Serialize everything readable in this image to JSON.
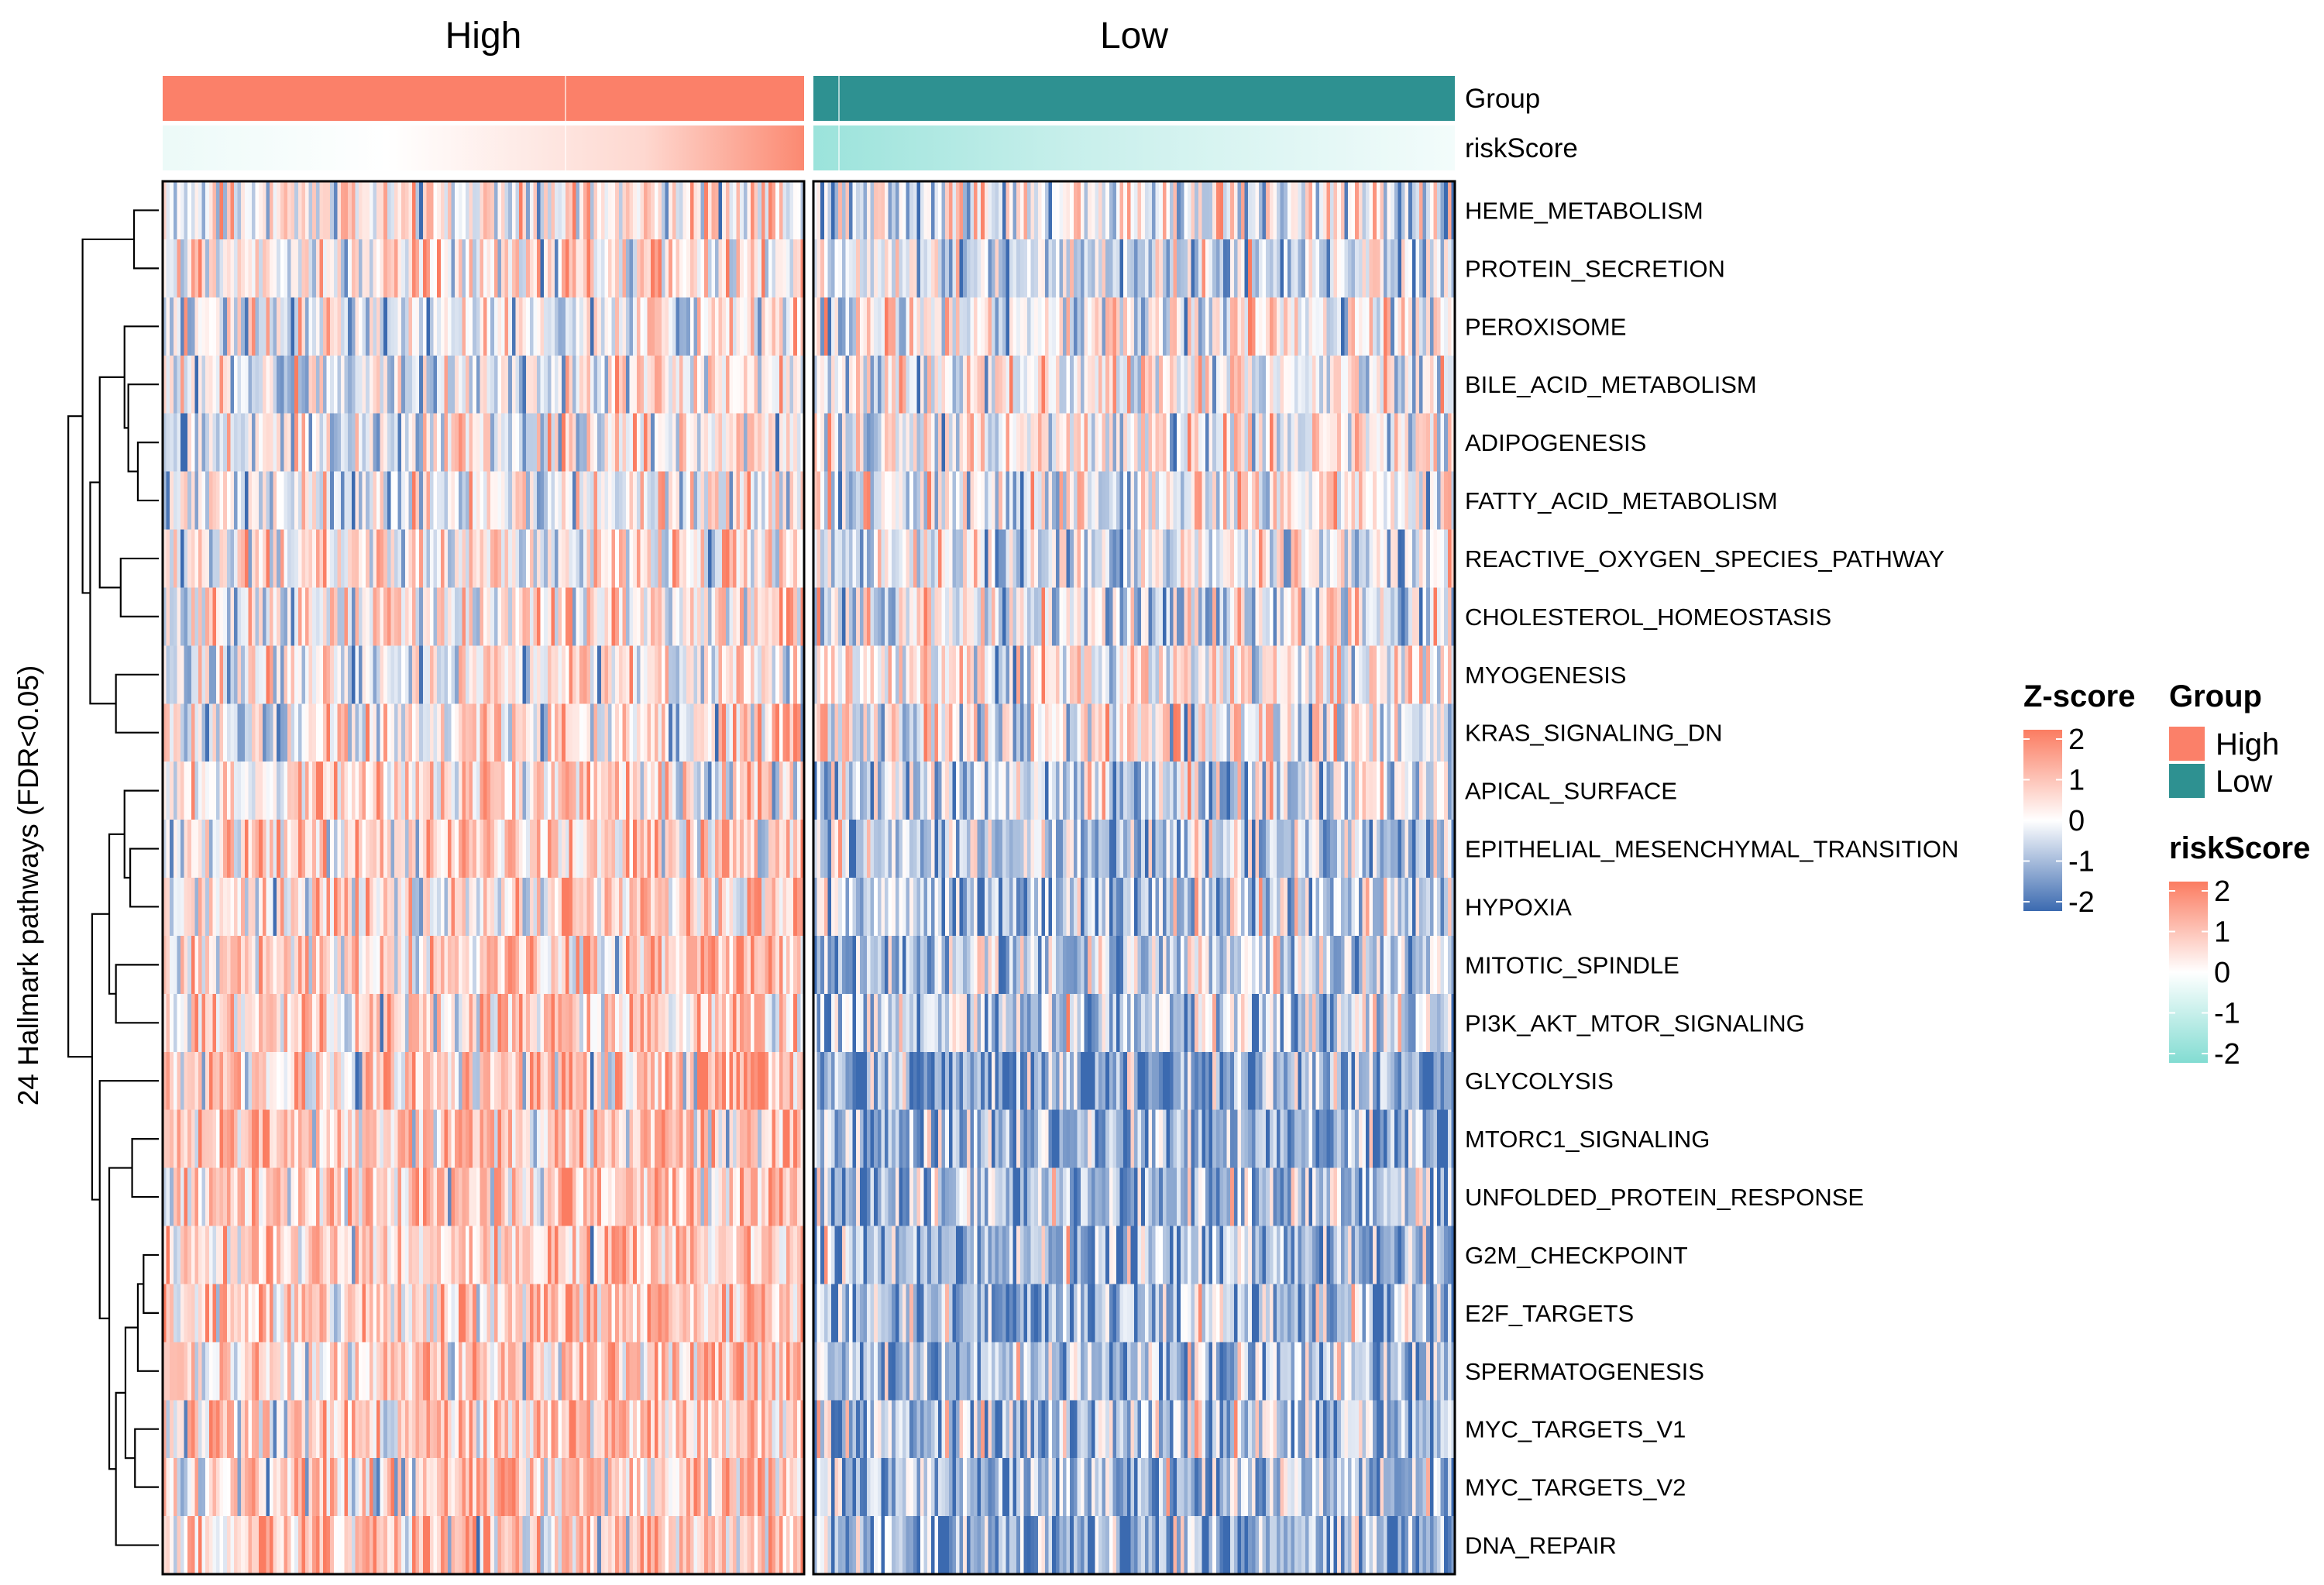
{
  "chart_data": {
    "type": "heatmap",
    "ylabel": "24 Hallmark pathways (FDR<0.05)",
    "column_splits": [
      {
        "label": "High",
        "n_samples": 180
      },
      {
        "label": "Low",
        "n_samples": 180
      }
    ],
    "annotations": [
      {
        "name": "Group"
      },
      {
        "name": "riskScore"
      }
    ],
    "rows": [
      {
        "label": "HEME_METABOLISM",
        "high_mean": 0.1,
        "low_mean": -0.1
      },
      {
        "label": "PROTEIN_SECRETION",
        "high_mean": 0.2,
        "low_mean": -0.15
      },
      {
        "label": "PEROXISOME",
        "high_mean": -0.25,
        "low_mean": 0.25
      },
      {
        "label": "BILE_ACID_METABOLISM",
        "high_mean": -0.2,
        "low_mean": 0.2
      },
      {
        "label": "ADIPOGENESIS",
        "high_mean": -0.15,
        "low_mean": 0.2
      },
      {
        "label": "FATTY_ACID_METABOLISM",
        "high_mean": -0.2,
        "low_mean": 0.25
      },
      {
        "label": "REACTIVE_OXYGEN_SPECIES_PATHWAY",
        "high_mean": 0.05,
        "low_mean": -0.05
      },
      {
        "label": "CHOLESTEROL_HOMEOSTASIS",
        "high_mean": 0.15,
        "low_mean": -0.15
      },
      {
        "label": "MYOGENESIS",
        "high_mean": -0.1,
        "low_mean": 0.3
      },
      {
        "label": "KRAS_SIGNALING_DN",
        "high_mean": -0.05,
        "low_mean": 0.3
      },
      {
        "label": "APICAL_SURFACE",
        "high_mean": 0.3,
        "low_mean": -0.3
      },
      {
        "label": "EPITHELIAL_MESENCHYMAL_TRANSITION",
        "high_mean": 0.4,
        "low_mean": -0.4
      },
      {
        "label": "HYPOXIA",
        "high_mean": 0.35,
        "low_mean": -0.5
      },
      {
        "label": "MITOTIC_SPINDLE",
        "high_mean": 0.5,
        "low_mean": -0.4
      },
      {
        "label": "PI3K_AKT_MTOR_SIGNALING",
        "high_mean": 0.4,
        "low_mean": -0.35
      },
      {
        "label": "GLYCOLYSIS",
        "high_mean": 0.7,
        "low_mean": -0.9
      },
      {
        "label": "MTORC1_SIGNALING",
        "high_mean": 0.6,
        "low_mean": -0.8
      },
      {
        "label": "UNFOLDED_PROTEIN_RESPONSE",
        "high_mean": 0.55,
        "low_mean": -0.7
      },
      {
        "label": "G2M_CHECKPOINT",
        "high_mean": 0.5,
        "low_mean": -0.75
      },
      {
        "label": "E2F_TARGETS",
        "high_mean": 0.5,
        "low_mean": -0.75
      },
      {
        "label": "SPERMATOGENESIS",
        "high_mean": 0.45,
        "low_mean": -0.6
      },
      {
        "label": "MYC_TARGETS_V1",
        "high_mean": 0.5,
        "low_mean": -0.7
      },
      {
        "label": "MYC_TARGETS_V2",
        "high_mean": 0.5,
        "low_mean": -0.65
      },
      {
        "label": "DNA_REPAIR",
        "high_mean": 0.55,
        "low_mean": -0.85
      }
    ],
    "dendrogram": {
      "nodes": [
        {
          "i": 0,
          "j": 1,
          "h": 0.26
        },
        {
          "i": 4,
          "j": 5,
          "h": 0.22
        },
        {
          "i": 3,
          "j": "m1",
          "h": 0.32
        },
        {
          "i": 2,
          "j": "m2",
          "h": 0.36
        },
        {
          "i": 6,
          "j": 7,
          "h": 0.4
        },
        {
          "i": "m3",
          "j": "m4",
          "h": 0.62
        },
        {
          "i": 8,
          "j": 9,
          "h": 0.45
        },
        {
          "i": "m5",
          "j": "m6",
          "h": 0.72
        },
        {
          "i": "m0",
          "j": "m7",
          "h": 0.8
        },
        {
          "i": 11,
          "j": 12,
          "h": 0.3
        },
        {
          "i": 10,
          "j": "m9",
          "h": 0.36
        },
        {
          "i": 13,
          "j": 14,
          "h": 0.45
        },
        {
          "i": "m10",
          "j": "m11",
          "h": 0.52
        },
        {
          "i": 16,
          "j": 17,
          "h": 0.28
        },
        {
          "i": 18,
          "j": 19,
          "h": 0.16
        },
        {
          "i": "m14",
          "j": 20,
          "h": 0.22
        },
        {
          "i": 21,
          "j": 22,
          "h": 0.25
        },
        {
          "i": "m15",
          "j": "m16",
          "h": 0.35
        },
        {
          "i": "m17",
          "j": 23,
          "h": 0.45
        },
        {
          "i": "m13",
          "j": "m18",
          "h": 0.52
        },
        {
          "i": 15,
          "j": "m19",
          "h": 0.62
        },
        {
          "i": "m12",
          "j": "m20",
          "h": 0.7
        },
        {
          "i": "m8",
          "j": "m21",
          "h": 0.95
        }
      ]
    },
    "legends": [
      {
        "title": "Z-score",
        "ticks": [
          2,
          1,
          0,
          -1,
          -2
        ],
        "colors": [
          "#fb7c61",
          "#ffffff",
          "#3b6ab0"
        ]
      },
      {
        "title": "Group",
        "items": [
          {
            "label": "High",
            "color": "#fb8069"
          },
          {
            "label": "Low",
            "color": "#2e9191"
          }
        ]
      },
      {
        "title": "riskScore",
        "ticks": [
          2,
          1,
          0,
          -1,
          -2
        ],
        "colors": [
          "#fb7c61",
          "#ffffff",
          "#82dcd2"
        ]
      }
    ],
    "colors": {
      "zscore_high": "#fb7c61",
      "zscore_mid": "#ffffff",
      "zscore_low": "#3b6ab0",
      "group_high": "#fb8069",
      "group_low": "#2e9191",
      "risk_high": "#fb7c61",
      "risk_mid": "#ffffff",
      "risk_low": "#82dcd2"
    }
  }
}
